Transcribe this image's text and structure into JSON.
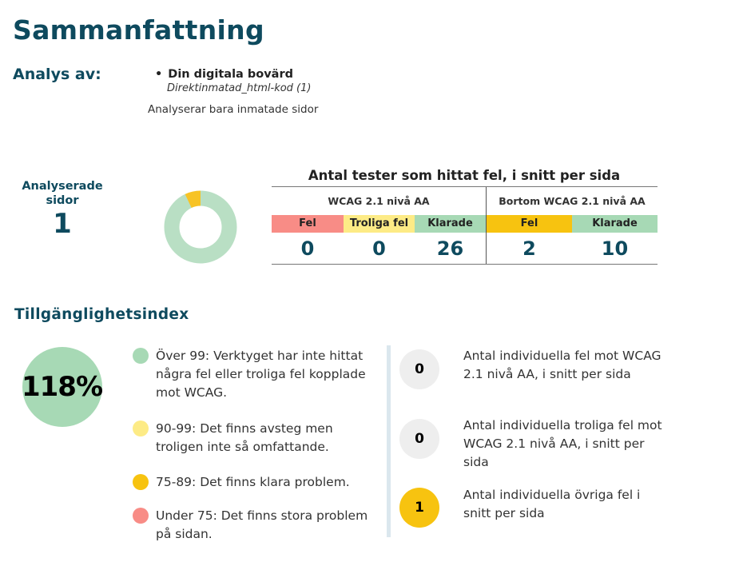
{
  "title": "Sammanfattning",
  "analysis": {
    "label": "Analys av:",
    "item_name": "Din digitala bovärd",
    "item_sub": "Direktinmatad_html-kod (1)",
    "note": "Analyserar bara inmatade sidor"
  },
  "pages": {
    "label": "Analyserade sidor",
    "count": "1"
  },
  "donut": {
    "fraction_passed": 0.93,
    "passed_color": "#b9dfc4",
    "failed_color": "#f7c325"
  },
  "tests": {
    "title": "Antal tester som hittat fel, i snitt per sida",
    "groups": [
      {
        "title": "WCAG 2.1 nivå AA",
        "columns": [
          {
            "label": "Fel",
            "value": "0",
            "color": "#f88c86"
          },
          {
            "label": "Troliga fel",
            "value": "0",
            "color": "#fdeb86"
          },
          {
            "label": "Klarade",
            "value": "26",
            "color": "#a7d9b5"
          }
        ]
      },
      {
        "title": "Bortom WCAG 2.1 nivå AA",
        "columns": [
          {
            "label": "Fel",
            "value": "2",
            "color": "#f7c310"
          },
          {
            "label": "Klarade",
            "value": "10",
            "color": "#a7d9b5"
          }
        ]
      }
    ]
  },
  "index": {
    "title": "Tillgänglighetsindex",
    "value": "118%",
    "color": "#a7d9b5",
    "legend": [
      {
        "text": "Över 99: Verktyget har inte hittat några fel eller troliga fel kopplade mot WCAG.",
        "color": "#a7d9b5"
      },
      {
        "text": "90-99: Det finns avsteg men troligen inte så omfattande.",
        "color": "#fdeb86"
      },
      {
        "text": "75-89: Det finns klara problem.",
        "color": "#f7c310"
      },
      {
        "text": "Under 75: Det finns stora problem på sidan.",
        "color": "#f88c86"
      }
    ]
  },
  "stats": [
    {
      "value": "0",
      "text": "Antal individuella fel mot WCAG 2.1 nivå AA, i snitt per sida",
      "color": "#eeeeee"
    },
    {
      "value": "0",
      "text": "Antal individuella troliga fel mot WCAG 2.1 nivå AA, i snitt per sida",
      "color": "#eeeeee"
    },
    {
      "value": "1",
      "text": "Antal individuella övriga fel i snitt per sida",
      "color": "#f7c310"
    }
  ]
}
